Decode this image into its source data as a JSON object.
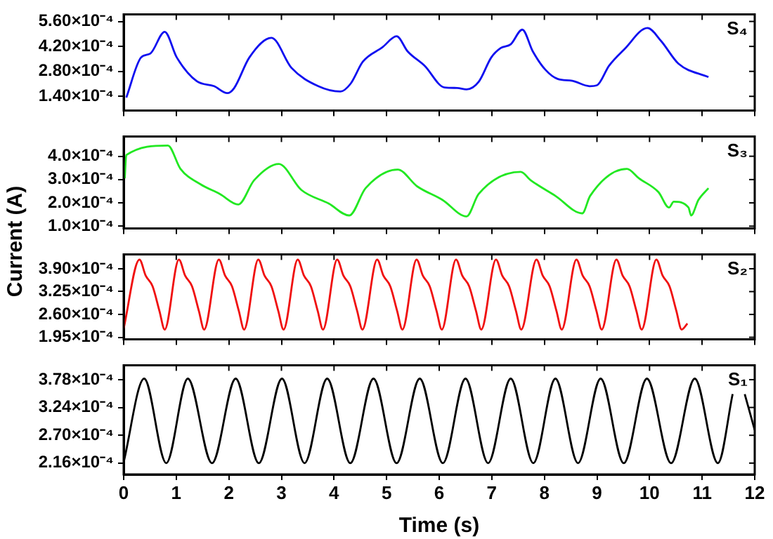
{
  "chart_data": [
    {
      "type": "line",
      "xlim": [
        0,
        12
      ],
      "xticks": [
        0,
        1,
        2,
        3,
        4,
        5,
        6,
        7,
        8,
        9,
        10,
        11,
        12
      ],
      "ylim": [
        6e-05,
        0.0006
      ],
      "yticks": [
        {
          "value": 0.00014,
          "label": "1.40×10⁻⁴"
        },
        {
          "value": 0.00028,
          "label": "2.80×10⁻⁴"
        },
        {
          "value": 0.00042,
          "label": "4.20×10⁻⁴"
        },
        {
          "value": 0.00056,
          "label": "5.60×10⁻⁴"
        }
      ],
      "tick_labels": "y",
      "grid": false,
      "legend": "top right",
      "marker": "none",
      "line_style": "solid",
      "series": [
        {
          "name": "S₄",
          "color": "#1010f0",
          "x": [
            0.05,
            0.33,
            0.51,
            0.78,
            1.01,
            1.39,
            1.72,
            1.97,
            2.1,
            2.39,
            2.81,
            3.19,
            3.7,
            4.12,
            4.31,
            4.55,
            4.92,
            5.19,
            5.4,
            5.72,
            6.1,
            6.34,
            6.52,
            6.75,
            6.99,
            7.17,
            7.36,
            7.58,
            7.78,
            8.02,
            8.25,
            8.53,
            8.86,
            9.0,
            9.23,
            9.52,
            9.96,
            10.22,
            10.55,
            11.12
          ],
          "values": [
            0.000133,
            0.000358,
            0.000381,
            0.000502,
            0.000358,
            0.000225,
            0.000197,
            0.000158,
            0.000186,
            0.000358,
            0.000468,
            0.0003,
            0.000197,
            0.000167,
            0.000209,
            0.000335,
            0.000415,
            0.000477,
            0.000392,
            0.000312,
            0.00019,
            0.000187,
            0.000179,
            0.000221,
            0.000358,
            0.000411,
            0.000432,
            0.000514,
            0.000392,
            0.000289,
            0.000238,
            0.000227,
            0.000197,
            0.000202,
            0.000312,
            0.000404,
            0.000523,
            0.00045,
            0.000323,
            0.000248
          ]
        }
      ]
    },
    {
      "type": "line",
      "xlim": [
        0,
        12
      ],
      "xticks": [
        0,
        1,
        2,
        3,
        4,
        5,
        6,
        7,
        8,
        9,
        10,
        11,
        12
      ],
      "ylim": [
        9e-05,
        0.000485
      ],
      "yticks": [
        {
          "value": 0.0001,
          "label": "1.0×10⁻⁴"
        },
        {
          "value": 0.0002,
          "label": "2.0×10⁻⁴"
        },
        {
          "value": 0.0003,
          "label": "3.0×10⁻⁴"
        },
        {
          "value": 0.0004,
          "label": "4.0×10⁻⁴"
        }
      ],
      "tick_labels": "y",
      "grid": false,
      "legend": "top right",
      "marker": "none",
      "line_style": "solid",
      "ylabel": "Current (A)",
      "series": [
        {
          "name": "S₃",
          "color": "#22e822",
          "x": [
            0.02,
            0.05,
            0.84,
            1.08,
            1.46,
            1.83,
            2.18,
            2.48,
            2.95,
            3.38,
            3.9,
            4.29,
            4.6,
            5.21,
            5.58,
            6.06,
            6.52,
            6.75,
            7.55,
            7.74,
            8.21,
            8.72,
            8.87,
            9.57,
            9.8,
            10.17,
            10.37,
            10.46,
            10.74,
            10.79,
            10.93,
            11.12
          ],
          "values": [
            0.000305,
            0.000405,
            0.000446,
            0.000346,
            0.00028,
            0.000238,
            0.000193,
            0.000297,
            0.000367,
            0.000255,
            0.000197,
            0.000146,
            0.000263,
            0.000343,
            0.000271,
            0.000213,
            0.000142,
            0.000238,
            0.000333,
            0.000297,
            0.00023,
            0.000155,
            0.00023,
            0.000346,
            0.000305,
            0.000246,
            0.00018,
            0.000205,
            0.00018,
            0.000146,
            0.000213,
            0.000263
          ]
        }
      ]
    },
    {
      "type": "line",
      "xlim": [
        0,
        12
      ],
      "xticks": [
        0,
        1,
        2,
        3,
        4,
        5,
        6,
        7,
        8,
        9,
        10,
        11,
        12
      ],
      "ylim": [
        0.000189,
        0.000431
      ],
      "yticks": [
        {
          "value": 0.000195,
          "label": "1.95×10⁻⁴"
        },
        {
          "value": 0.00026,
          "label": "2.60×10⁻⁴"
        },
        {
          "value": 0.000325,
          "label": "3.25×10⁻⁴"
        },
        {
          "value": 0.00039,
          "label": "3.90×10⁻⁴"
        }
      ],
      "tick_labels": "y",
      "grid": false,
      "legend": "top right",
      "marker": "none",
      "line_style": "solid",
      "series": [
        {
          "name": "S₂",
          "color": "#f01010",
          "x": [
            0,
            0.3,
            0.42,
            0.55,
            0.68,
            0.78,
            1.05,
            1.17,
            1.3,
            1.43,
            1.53,
            1.81,
            1.93,
            2.06,
            2.19,
            2.29,
            2.56,
            2.68,
            2.81,
            2.94,
            3.04,
            3.31,
            3.43,
            3.56,
            3.69,
            3.79,
            4.06,
            4.18,
            4.31,
            4.44,
            4.54,
            4.82,
            4.94,
            5.07,
            5.2,
            5.3,
            5.57,
            5.69,
            5.82,
            5.95,
            6.05,
            6.32,
            6.44,
            6.57,
            6.7,
            6.8,
            7.08,
            7.2,
            7.33,
            7.46,
            7.56,
            7.85,
            7.97,
            8.1,
            8.23,
            8.33,
            8.61,
            8.73,
            8.86,
            8.99,
            9.09,
            9.37,
            9.49,
            9.62,
            9.75,
            9.85,
            10.13,
            10.25,
            10.38,
            10.51,
            10.61,
            10.72
          ],
          "values": [
            0.00022,
            0.000416,
            0.00037,
            0.00034,
            0.00027,
            0.000217,
            0.000416,
            0.00037,
            0.00034,
            0.00027,
            0.000217,
            0.000416,
            0.00037,
            0.00034,
            0.00027,
            0.000217,
            0.000416,
            0.00037,
            0.00034,
            0.00027,
            0.000217,
            0.000416,
            0.00037,
            0.00034,
            0.00027,
            0.000217,
            0.000416,
            0.00037,
            0.00034,
            0.00027,
            0.000217,
            0.000416,
            0.00037,
            0.00034,
            0.00027,
            0.000217,
            0.000416,
            0.00037,
            0.00034,
            0.00027,
            0.000217,
            0.000416,
            0.00037,
            0.00034,
            0.00027,
            0.000217,
            0.000416,
            0.00037,
            0.00034,
            0.00027,
            0.000217,
            0.000416,
            0.00037,
            0.00034,
            0.00027,
            0.000217,
            0.000416,
            0.00037,
            0.00034,
            0.00027,
            0.000217,
            0.000416,
            0.00037,
            0.00034,
            0.00027,
            0.000217,
            0.000416,
            0.00037,
            0.00034,
            0.00027,
            0.000217,
            0.000234
          ]
        }
      ]
    },
    {
      "type": "line",
      "xlim": [
        0,
        12
      ],
      "xticks": [
        0,
        1,
        2,
        3,
        4,
        5,
        6,
        7,
        8,
        9,
        10,
        11,
        12
      ],
      "ylim": [
        0.000194,
        0.000406
      ],
      "yticks": [
        {
          "value": 0.000216,
          "label": "2.16×10⁻⁴"
        },
        {
          "value": 0.00027,
          "label": "2.70×10⁻⁴"
        },
        {
          "value": 0.000324,
          "label": "3.24×10⁻⁴"
        },
        {
          "value": 0.000378,
          "label": "3.78×10⁻⁴"
        }
      ],
      "grid": false,
      "legend": "top right",
      "marker": "none",
      "line_style": "solid",
      "xlabel": "Time (s)",
      "series": [
        {
          "name": "S₁",
          "color": "#000000",
          "x": [
            0,
            0.39,
            0.81,
            1.22,
            1.68,
            2.13,
            2.57,
            3.01,
            3.44,
            3.87,
            4.31,
            4.75,
            5.19,
            5.63,
            6.07,
            6.5,
            6.93,
            7.36,
            7.79,
            8.21,
            8.64,
            9.07,
            9.51,
            9.95,
            10.41,
            10.86,
            11.3,
            11.58,
            11.7,
            11.81,
            12.0
          ],
          "values": [
            0.000218,
            0.00038,
            0.000216,
            0.00038,
            0.000216,
            0.00038,
            0.000216,
            0.00038,
            0.000216,
            0.00038,
            0.000216,
            0.00038,
            0.000216,
            0.00038,
            0.000216,
            0.00038,
            0.000216,
            0.00038,
            0.000216,
            0.00038,
            0.000216,
            0.00038,
            0.000216,
            0.00038,
            0.000216,
            0.00038,
            0.000216,
            0.00035,
            null,
            0.00035,
            0.00028
          ]
        }
      ]
    }
  ]
}
